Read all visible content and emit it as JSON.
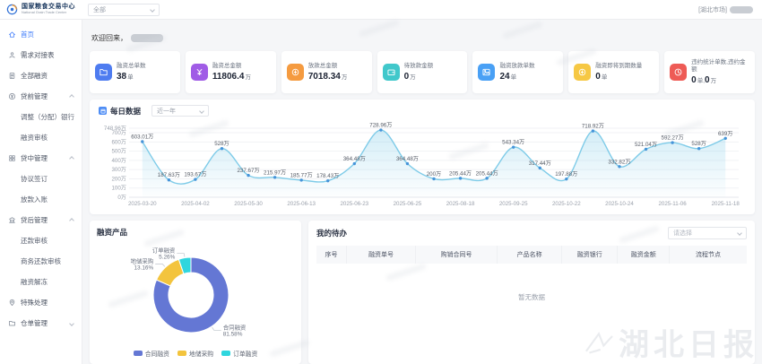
{
  "header": {
    "brand_title": "国家粮食交易中心",
    "brand_subtitle": "National Grain Trade Center",
    "scope_value": "全部",
    "market_label": "[湖北市场]"
  },
  "sidebar": {
    "items": [
      {
        "label": "首页",
        "icon": "home-icon",
        "type": "item",
        "active": true
      },
      {
        "label": "需求对接表",
        "icon": "user-icon",
        "type": "item"
      },
      {
        "label": "全部融资",
        "icon": "doc-icon",
        "type": "item"
      },
      {
        "label": "贷前管理",
        "icon": "yuan-icon",
        "type": "group",
        "chevron": "up"
      },
      {
        "label": "调整（分配）银行",
        "type": "sub"
      },
      {
        "label": "融资审核",
        "type": "sub"
      },
      {
        "label": "贷中管理",
        "icon": "grid-icon",
        "type": "group",
        "chevron": "up"
      },
      {
        "label": "协议签订",
        "type": "sub"
      },
      {
        "label": "放款入账",
        "type": "sub"
      },
      {
        "label": "贷后管理",
        "icon": "bank-icon",
        "type": "group",
        "chevron": "up"
      },
      {
        "label": "还款审核",
        "type": "sub"
      },
      {
        "label": "商务还款审核",
        "type": "sub"
      },
      {
        "label": "融资解冻",
        "type": "sub"
      },
      {
        "label": "特殊处理",
        "icon": "pin-icon",
        "type": "item"
      },
      {
        "label": "仓单管理",
        "icon": "folder-icon",
        "type": "group",
        "chevron": "down"
      }
    ]
  },
  "welcome": {
    "label": "欢迎回来，"
  },
  "stats": [
    {
      "label": "融资总单数",
      "parts": [
        {
          "v": "38",
          "u": "单"
        }
      ],
      "icon": "file-icon",
      "color": "#4e7cf0"
    },
    {
      "label": "融资总金额",
      "parts": [
        {
          "v": "11806.4",
          "u": "万"
        }
      ],
      "icon": "money-icon",
      "color": "#a05ce6"
    },
    {
      "label": "放款总金额",
      "parts": [
        {
          "v": "7018.34",
          "u": "万"
        }
      ],
      "icon": "coin-icon",
      "color": "#f59b40"
    },
    {
      "label": "待放款金额",
      "parts": [
        {
          "v": "0",
          "u": "万"
        }
      ],
      "icon": "wallet-icon",
      "color": "#41c8cb"
    },
    {
      "label": "融资放款单数",
      "parts": [
        {
          "v": "24",
          "u": "单"
        }
      ],
      "icon": "image-icon",
      "color": "#49a0f5"
    },
    {
      "label": "融资即将到期数量",
      "parts": [
        {
          "v": "0",
          "u": "单"
        }
      ],
      "icon": "coin2-icon",
      "color": "#f6c844"
    },
    {
      "label": "违约统计单数,违约金额",
      "parts": [
        {
          "v": "0",
          "u": "单,"
        },
        {
          "v": "0",
          "u": "万"
        }
      ],
      "icon": "clock-icon",
      "color": "#ee5b56"
    }
  ],
  "chart_data": [
    {
      "type": "line",
      "title": "每日数据",
      "range_value": "近一年",
      "x": [
        "2025-03-20",
        "",
        "2025-04-02",
        "",
        "2025-05-30",
        "",
        "2025-06-13",
        "",
        "2025-06-23",
        "",
        "2025-06-25",
        "",
        "2025-08-18",
        "",
        "2025-09-25",
        "",
        "2025-10-22",
        "",
        "2025-10-24",
        "",
        "2025-11-06",
        "",
        "2025-11-18"
      ],
      "values": [
        603.01,
        187.63,
        193.67,
        528,
        237.67,
        215.97,
        185.77,
        178.43,
        364.48,
        728.96,
        364.48,
        200,
        205.44,
        205.44,
        543.34,
        317.44,
        197.88,
        718.92,
        332.82,
        521.04,
        592.27,
        528,
        639
      ],
      "unit": "万",
      "ylim": [
        0,
        748.96
      ],
      "yticks": [
        0,
        100,
        200,
        300,
        400,
        500,
        600,
        700,
        748.96
      ],
      "line_color": "#7ecbe8",
      "point_color": "#4694d9",
      "grid": true,
      "legend_position": "none"
    },
    {
      "type": "pie",
      "title": "融资产品",
      "slices": [
        {
          "name": "合同融资",
          "pct": 81.58,
          "color": "#6477d4"
        },
        {
          "name": "地储采购",
          "pct": 13.16,
          "color": "#f3c43d"
        },
        {
          "name": "订单融资",
          "pct": 5.26,
          "color": "#2fd6de"
        }
      ],
      "legend_position": "bottom"
    }
  ],
  "todo": {
    "title": "我的待办",
    "filter_placeholder": "请选择",
    "columns": [
      "序号",
      "融资单号",
      "购销合同号",
      "产品名称",
      "融资银行",
      "融资金额",
      "流程节点"
    ],
    "rows": [],
    "empty_text": "暂无数据"
  },
  "watermark": "湖北日报"
}
